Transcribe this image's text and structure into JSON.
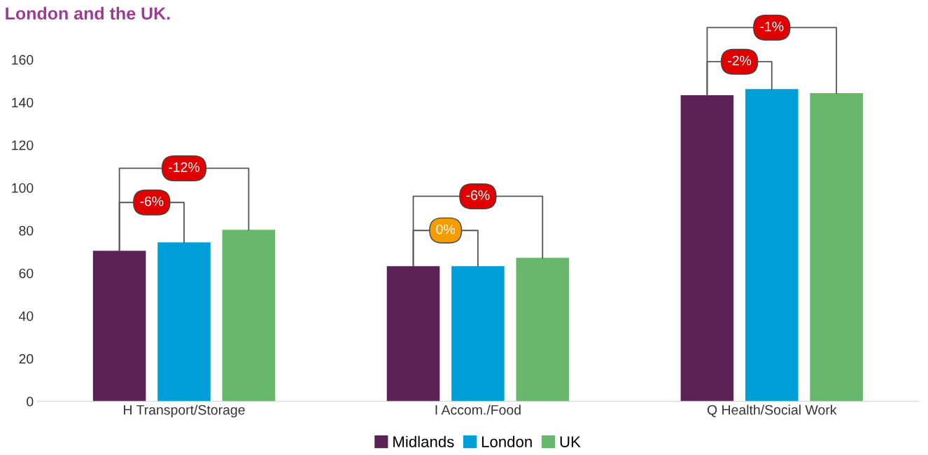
{
  "chart_data": {
    "type": "bar",
    "title": "London and the UK.",
    "categories": [
      "H Transport/Storage",
      "I Accom./Food",
      "Q Health/Social Work"
    ],
    "series": [
      {
        "name": "Midlands",
        "color": "#5c2155",
        "values": [
          70.5,
          63.3,
          143.3
        ]
      },
      {
        "name": "London",
        "color": "#009fda",
        "values": [
          74.4,
          63.3,
          146.2
        ]
      },
      {
        "name": "UK",
        "color": "#69b76c",
        "values": [
          80.3,
          67.2,
          144.3
        ]
      }
    ],
    "ylim": [
      0,
      160
    ],
    "yticks": [
      0,
      20,
      40,
      60,
      80,
      100,
      120,
      140,
      160
    ],
    "grid": false,
    "legend": "bottom",
    "annotations": [
      "-12%",
      "-6%",
      "-6%",
      "0%",
      "-1%",
      "-2%"
    ]
  }
}
